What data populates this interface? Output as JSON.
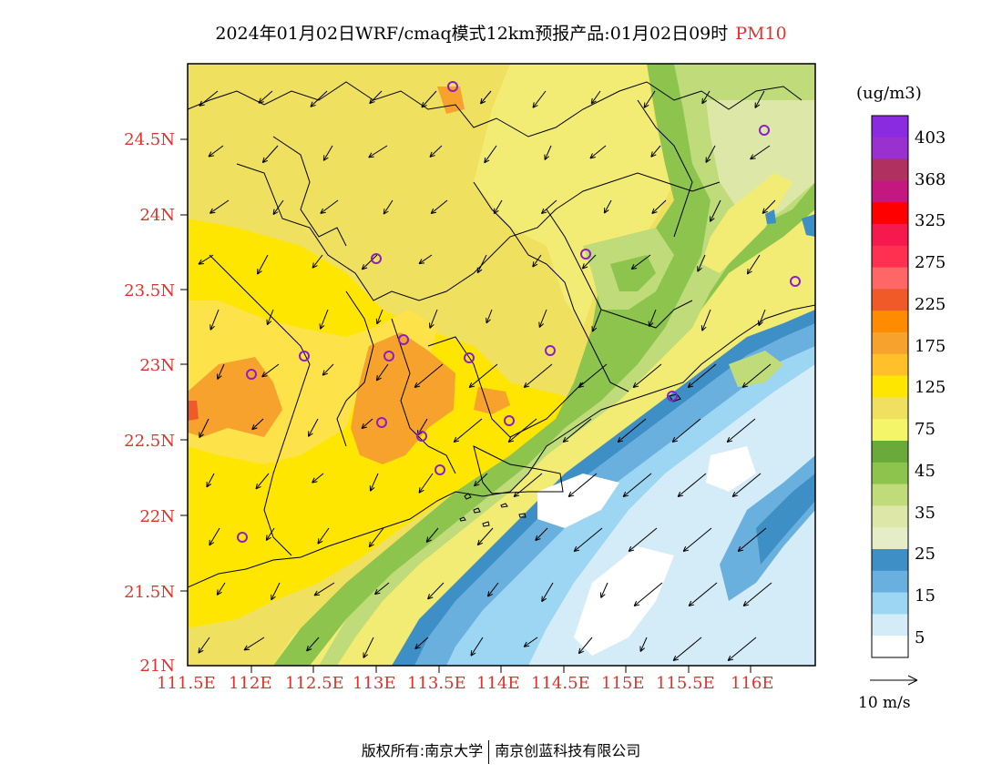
{
  "title": {
    "main": "2024年01月02日WRF/cmaq模式12km预报产品:01月02日09时",
    "species": "PM10"
  },
  "map": {
    "lat_labels": [
      "24.5N",
      "24N",
      "23.5N",
      "23N",
      "22.5N",
      "22N",
      "21.5N",
      "21N"
    ],
    "lon_labels": [
      "111.5E",
      "112E",
      "112.5E",
      "113E",
      "113.5E",
      "114E",
      "114.5E",
      "115E",
      "115.5E",
      "116E"
    ],
    "lon_range": [
      111.5,
      116.7
    ],
    "lat_range": [
      21.0,
      24.9
    ]
  },
  "colorbar": {
    "unit": "(ug/m3)",
    "labels": [
      "403",
      "368",
      "325",
      "275",
      "225",
      "175",
      "125",
      "75",
      "45",
      "35",
      "25",
      "15",
      "5"
    ],
    "colors": [
      "#8a2be2",
      "#9b30d0",
      "#b03060",
      "#c41880",
      "#ff0000",
      "#f5194d",
      "#ff3050",
      "#ff6666",
      "#f05a28",
      "#ff8c00",
      "#f6a22c",
      "#ffc02a",
      "#ffe600",
      "#f0e060",
      "#f5f56a",
      "#6aaa3a",
      "#8cc44e",
      "#c0dc7a",
      "#dde8a8",
      "#e5edc8",
      "#3d8fc6",
      "#6ab0de",
      "#9dd6f2",
      "#d4ecf8",
      "#ffffff"
    ]
  },
  "vector_key": {
    "label": "10 m/s"
  },
  "footer": {
    "left": "版权所有:南京大学",
    "right": "南京创蓝科技有限公司"
  }
}
